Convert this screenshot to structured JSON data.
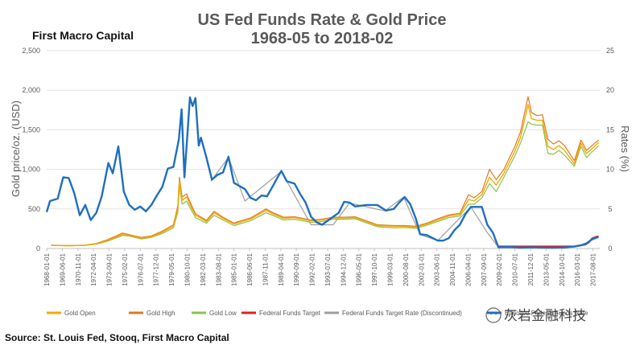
{
  "header": {
    "brand": "First Macro Capital",
    "source": "Source: St. Louis Fed, Stooq, First Macro Capital",
    "watermark": "灰岩金融科技"
  },
  "chart_data": {
    "type": "line",
    "title": "US Fed Funds Rate & Gold Price",
    "subtitle": "1968-05 to 2018-02",
    "ylabel_left": "Gold price/oz. (USD)",
    "ylabel_right": "Rates (%)",
    "ylim_left": [
      0,
      2500
    ],
    "ylim_right": [
      0,
      25
    ],
    "yticks_left": [
      "0",
      "500",
      "1,000",
      "1,500",
      "2,000",
      "2,500"
    ],
    "yticks_right": [
      "0",
      "5",
      "10",
      "15",
      "20",
      "25"
    ],
    "x_tick_labels": [
      "1968-01-01",
      "1969-06-01",
      "1970-11-01",
      "1972-04-01",
      "1973-09-01",
      "1975-02-01",
      "1976-07-01",
      "1977-12-01",
      "1979-05-01",
      "1980-10-01",
      "1982-03-01",
      "1983-08-01",
      "1985-01-01",
      "1986-06-01",
      "1987-11-01",
      "1989-04-01",
      "1990-09-01",
      "1992-02-01",
      "1993-07-01",
      "1994-12-01",
      "1996-05-01",
      "1997-10-01",
      "1999-03-01",
      "2000-08-01",
      "2002-01-01",
      "2003-06-01",
      "2004-11-01",
      "2006-04-01",
      "2007-09-01",
      "2009-02-01",
      "2010-07-01",
      "2011-12-01",
      "2013-05-01",
      "2014-10-01",
      "2016-03-01",
      "2017-08-01"
    ],
    "x_range": [
      1968.0,
      2018.2
    ],
    "grid": true,
    "legend_position": "bottom",
    "legend": [
      {
        "name": "Gold Open",
        "color": "#f5a800"
      },
      {
        "name": "Gold High",
        "color": "#e07820"
      },
      {
        "name": "Gold Low",
        "color": "#8bc34a"
      },
      {
        "name": "Federal Funds Target",
        "color": "#e02020"
      },
      {
        "name": "Federal Funds Target Rate (Discontinued)",
        "color": "#9e9e9e"
      },
      {
        "name": "Effective Federal Funds Rate",
        "color": "#1f6fc0"
      }
    ],
    "series": [
      {
        "name": "Gold Open",
        "axis": "left",
        "x": [
          1968.4,
          1970.0,
          1971.5,
          1972.5,
          1973.5,
          1974.9,
          1975.5,
          1976.6,
          1977.5,
          1978.5,
          1979.5,
          1979.9,
          1980.05,
          1980.3,
          1980.7,
          1981.0,
          1981.5,
          1982.5,
          1983.2,
          1984.0,
          1985.0,
          1985.5,
          1986.5,
          1987.9,
          1988.5,
          1989.5,
          1990.5,
          1992.0,
          1993.0,
          1994.0,
          1995.0,
          1996.0,
          1997.0,
          1998.0,
          1999.5,
          2000.5,
          2001.5,
          2002.5,
          2003.5,
          2004.5,
          2005.5,
          2006.3,
          2006.8,
          2007.5,
          2008.2,
          2008.8,
          2009.5,
          2010.5,
          2011.0,
          2011.7,
          2012.0,
          2012.5,
          2013.0,
          2013.5,
          2014.0,
          2014.5,
          2015.0,
          2015.9,
          2016.5,
          2017.0,
          2017.5,
          2018.1
        ],
        "values": [
          40,
          36,
          41,
          60,
          100,
          180,
          165,
          130,
          150,
          205,
          280,
          500,
          860,
          610,
          650,
          560,
          420,
          340,
          450,
          380,
          310,
          330,
          370,
          480,
          440,
          380,
          390,
          350,
          360,
          385,
          385,
          390,
          340,
          290,
          280,
          280,
          270,
          310,
          360,
          410,
          430,
          620,
          600,
          680,
          900,
          800,
          950,
          1230,
          1400,
          1820,
          1640,
          1620,
          1620,
          1290,
          1250,
          1300,
          1240,
          1070,
          1330,
          1200,
          1260,
          1340
        ]
      },
      {
        "name": "Gold High",
        "axis": "left",
        "x": [
          1968.4,
          1970.0,
          1971.5,
          1972.5,
          1973.5,
          1974.9,
          1975.5,
          1976.6,
          1977.5,
          1978.5,
          1979.5,
          1979.9,
          1980.05,
          1980.3,
          1980.7,
          1981.0,
          1981.5,
          1982.5,
          1983.2,
          1984.0,
          1985.0,
          1985.5,
          1986.5,
          1987.9,
          1988.5,
          1989.5,
          1990.5,
          1992.0,
          1993.0,
          1994.0,
          1995.0,
          1996.0,
          1997.0,
          1998.0,
          1999.5,
          2000.5,
          2001.5,
          2002.5,
          2003.5,
          2004.5,
          2005.5,
          2006.3,
          2006.8,
          2007.5,
          2008.2,
          2008.8,
          2009.5,
          2010.5,
          2011.0,
          2011.7,
          2012.0,
          2012.5,
          2013.0,
          2013.5,
          2014.0,
          2014.5,
          2015.0,
          2015.9,
          2016.5,
          2017.0,
          2017.5,
          2018.1
        ],
        "values": [
          42,
          38,
          43,
          64,
          110,
          195,
          175,
          140,
          160,
          220,
          300,
          540,
          900,
          650,
          690,
          590,
          440,
          355,
          470,
          395,
          320,
          345,
          385,
          500,
          455,
          395,
          400,
          360,
          370,
          395,
          395,
          400,
          350,
          300,
          290,
          290,
          280,
          320,
          375,
          425,
          445,
          680,
          640,
          720,
          1000,
          870,
          1000,
          1290,
          1470,
          1920,
          1720,
          1680,
          1690,
          1380,
          1320,
          1360,
          1300,
          1110,
          1370,
          1240,
          1300,
          1370
        ]
      },
      {
        "name": "Gold Low",
        "axis": "left",
        "x": [
          1968.4,
          1970.0,
          1971.5,
          1972.5,
          1973.5,
          1974.9,
          1975.5,
          1976.6,
          1977.5,
          1978.5,
          1979.5,
          1979.9,
          1980.05,
          1980.3,
          1980.7,
          1981.0,
          1981.5,
          1982.5,
          1983.2,
          1984.0,
          1985.0,
          1985.5,
          1986.5,
          1987.9,
          1988.5,
          1989.5,
          1990.5,
          1992.0,
          1993.0,
          1994.0,
          1995.0,
          1996.0,
          1997.0,
          1998.0,
          1999.5,
          2000.5,
          2001.5,
          2002.5,
          2003.5,
          2004.5,
          2005.5,
          2006.3,
          2006.8,
          2007.5,
          2008.2,
          2008.8,
          2009.5,
          2010.5,
          2011.0,
          2011.7,
          2012.0,
          2012.5,
          2013.0,
          2013.5,
          2014.0,
          2014.5,
          2015.0,
          2015.9,
          2016.5,
          2017.0,
          2017.5,
          2018.1
        ],
        "values": [
          38,
          34,
          39,
          56,
          90,
          165,
          155,
          120,
          140,
          190,
          260,
          460,
          790,
          560,
          600,
          520,
          390,
          320,
          420,
          360,
          290,
          310,
          350,
          450,
          420,
          360,
          370,
          330,
          340,
          370,
          370,
          375,
          325,
          275,
          260,
          265,
          255,
          295,
          340,
          390,
          410,
          560,
          560,
          640,
          820,
          720,
          900,
          1170,
          1330,
          1600,
          1570,
          1560,
          1560,
          1200,
          1190,
          1240,
          1180,
          1040,
          1290,
          1150,
          1220,
          1300
        ]
      },
      {
        "name": "Federal Funds Target",
        "axis": "right",
        "x": [
          2008.96,
          2015.9,
          2016.9,
          2017.2,
          2017.5,
          2017.95,
          2018.1
        ],
        "values": [
          0.25,
          0.25,
          0.5,
          0.75,
          1.25,
          1.5,
          1.5
        ]
      },
      {
        "name": "Federal Funds Target Rate (Discontinued)",
        "axis": "right",
        "x": [
          1982.9,
          1984.5,
          1986.0,
          1989.3,
          1992.0,
          1994.0,
          1995.5,
          1998.7,
          2000.4,
          2001.9,
          2003.5,
          2006.5,
          2008.0,
          2008.96
        ],
        "values": [
          8.5,
          11.5,
          6.0,
          9.75,
          3.0,
          3.0,
          5.75,
          4.75,
          6.5,
          1.75,
          1.0,
          5.25,
          2.0,
          0.25
        ]
      },
      {
        "name": "Effective Federal Funds Rate",
        "axis": "right",
        "x": [
          1968.0,
          1968.3,
          1969.0,
          1969.5,
          1970.0,
          1970.5,
          1971.0,
          1971.5,
          1972.0,
          1972.5,
          1973.0,
          1973.6,
          1974.0,
          1974.5,
          1975.0,
          1975.5,
          1976.0,
          1976.5,
          1977.0,
          1977.5,
          1978.0,
          1978.5,
          1979.0,
          1979.5,
          1980.0,
          1980.25,
          1980.5,
          1980.8,
          1981.0,
          1981.25,
          1981.5,
          1981.8,
          1982.0,
          1982.5,
          1983.0,
          1983.5,
          1984.0,
          1984.5,
          1985.0,
          1985.5,
          1986.0,
          1986.5,
          1987.0,
          1987.5,
          1988.0,
          1988.5,
          1989.0,
          1989.3,
          1989.8,
          1990.5,
          1991.0,
          1991.5,
          1992.0,
          1992.5,
          1993.0,
          1994.0,
          1994.5,
          1995.0,
          1995.5,
          1996.0,
          1997.0,
          1998.0,
          1998.8,
          1999.5,
          2000.0,
          2000.5,
          2001.0,
          2001.5,
          2001.9,
          2002.5,
          2003.5,
          2004.0,
          2004.5,
          2005.0,
          2005.5,
          2006.0,
          2006.5,
          2007.0,
          2007.5,
          2008.0,
          2008.5,
          2009.0,
          2010.0,
          2011.0,
          2012.0,
          2013.0,
          2014.0,
          2015.0,
          2015.9,
          2016.5,
          2017.0,
          2017.5,
          2018.0,
          2018.1
        ],
        "values": [
          4.6,
          6.0,
          6.3,
          9.0,
          8.9,
          7.0,
          4.2,
          5.5,
          3.6,
          4.5,
          6.6,
          10.8,
          9.5,
          12.9,
          7.2,
          5.5,
          4.9,
          5.3,
          4.7,
          5.5,
          6.7,
          7.8,
          10.1,
          10.3,
          13.8,
          17.6,
          9.0,
          15.0,
          19.1,
          18.0,
          19.0,
          13.0,
          14.0,
          11.5,
          8.7,
          9.3,
          9.6,
          11.6,
          8.3,
          7.9,
          7.5,
          6.4,
          6.1,
          6.7,
          6.6,
          7.8,
          9.1,
          9.8,
          8.5,
          8.2,
          6.9,
          5.8,
          4.0,
          3.3,
          3.0,
          4.0,
          4.5,
          5.9,
          5.8,
          5.3,
          5.5,
          5.5,
          4.8,
          5.0,
          5.8,
          6.5,
          5.6,
          3.8,
          1.8,
          1.7,
          1.0,
          1.0,
          1.3,
          2.3,
          3.0,
          4.3,
          5.25,
          5.25,
          5.25,
          3.0,
          2.0,
          0.16,
          0.18,
          0.1,
          0.14,
          0.11,
          0.09,
          0.13,
          0.24,
          0.4,
          0.65,
          1.15,
          1.42,
          1.42
        ]
      }
    ]
  }
}
